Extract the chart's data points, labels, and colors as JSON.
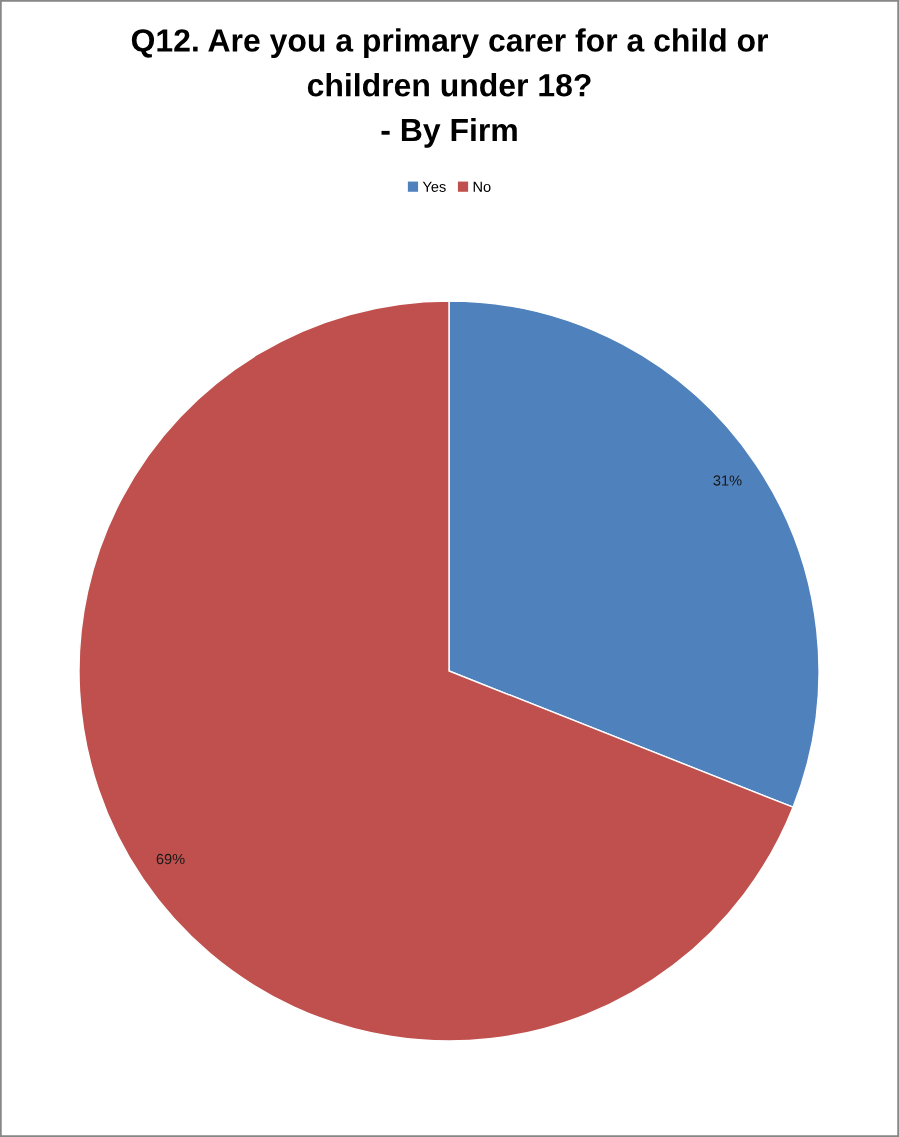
{
  "chart_data": {
    "type": "pie",
    "title": "Q12. Are you a primary carer for a child or\nchildren under 18?\n- By Firm",
    "categories": [
      "Yes",
      "No"
    ],
    "values": [
      31,
      69
    ],
    "colors": [
      "#4f81bd",
      "#c0504d"
    ],
    "value_labels": [
      "31%",
      "69%"
    ],
    "legend": "top"
  }
}
